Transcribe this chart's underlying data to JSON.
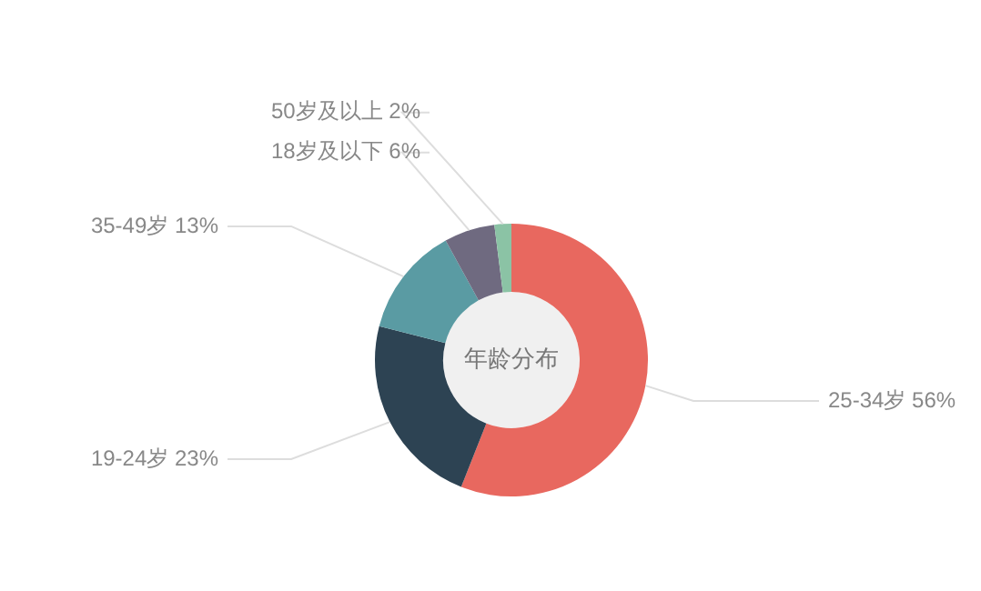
{
  "chart_data": {
    "type": "donut",
    "title": "年龄分布",
    "categories": [
      "25-34岁",
      "19-24岁",
      "35-49岁",
      "18岁及以下",
      "50岁及以上"
    ],
    "values": [
      56,
      23,
      13,
      6,
      2
    ],
    "value_labels": [
      "56%",
      "23%",
      "13%",
      "6%",
      "2%"
    ],
    "colors": [
      "#e8685f",
      "#2d4353",
      "#5a9ba3",
      "#6f6a80",
      "#8bc3a5"
    ],
    "legend": false
  }
}
